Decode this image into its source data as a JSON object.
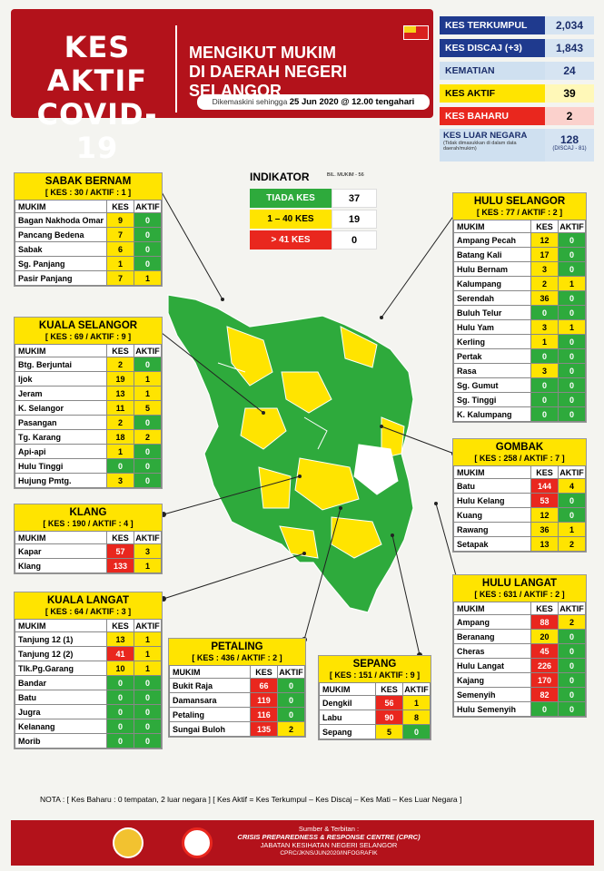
{
  "header": {
    "title": "KES AKTIF COVID-19",
    "subtitle_line1": "MENGIKUT MUKIM",
    "subtitle_line2": "DI DAERAH NEGERI SELANGOR",
    "updated_prefix": "Dikemaskini sehingga",
    "updated_date": "25 Jun 2020 @ 12.00 tengahari"
  },
  "stats": [
    {
      "label": "KES TERKUMPUL",
      "value": "2,034"
    },
    {
      "label": "KES DISCAJ (+3)",
      "value": "1,843"
    },
    {
      "label": "KEMATIAN",
      "value": "24"
    },
    {
      "label": "KES AKTIF",
      "value": "39"
    },
    {
      "label": "KES BAHARU",
      "value": "2"
    }
  ],
  "luar": {
    "label": "KES LUAR NEGARA",
    "note": "(Tidak dimasukkan di dalam data daerah/mukim)",
    "value": "128",
    "sub": "(DISCAJ - 81)"
  },
  "indikator": {
    "title": "INDIKATOR",
    "bil": "BIL. MUKIM - 56",
    "rows": [
      {
        "label": "TIADA KES",
        "value": "37"
      },
      {
        "label": "1 – 40 KES",
        "value": "19"
      },
      {
        "label": "> 41 KES",
        "value": "0"
      }
    ]
  },
  "col": {
    "mukim": "MUKIM",
    "kes": "KES",
    "aktif": "AKTIF"
  },
  "districts": {
    "sabak": {
      "name": "SABAK BERNAM",
      "sub": "[ KES : 30 / AKTIF : 1 ]",
      "rows": [
        [
          "Bagan Nakhoda Omar",
          "9",
          "0"
        ],
        [
          "Pancang Bedena",
          "7",
          "0"
        ],
        [
          "Sabak",
          "6",
          "0"
        ],
        [
          "Sg. Panjang",
          "1",
          "0"
        ],
        [
          "Pasir Panjang",
          "7",
          "1"
        ]
      ]
    },
    "kselangor": {
      "name": "KUALA SELANGOR",
      "sub": "[ KES : 69 / AKTIF : 9 ]",
      "rows": [
        [
          "Btg. Berjuntai",
          "2",
          "0"
        ],
        [
          "Ijok",
          "19",
          "1"
        ],
        [
          "Jeram",
          "13",
          "1"
        ],
        [
          "K. Selangor",
          "11",
          "5"
        ],
        [
          "Pasangan",
          "2",
          "0"
        ],
        [
          "Tg. Karang",
          "18",
          "2"
        ],
        [
          "Api-api",
          "1",
          "0"
        ],
        [
          "Hulu Tinggi",
          "0",
          "0"
        ],
        [
          "Hujung Pmtg.",
          "3",
          "0"
        ]
      ]
    },
    "klang": {
      "name": "KLANG",
      "sub": "[ KES : 190 / AKTIF : 4 ]",
      "rows": [
        [
          "Kapar",
          "57",
          "3"
        ],
        [
          "Klang",
          "133",
          "1"
        ]
      ]
    },
    "klangat": {
      "name": "KUALA LANGAT",
      "sub": "[ KES : 64 / AKTIF : 3 ]",
      "rows": [
        [
          "Tanjung 12 (1)",
          "13",
          "1"
        ],
        [
          "Tanjung 12 (2)",
          "41",
          "1"
        ],
        [
          "Tlk.Pg.Garang",
          "10",
          "1"
        ],
        [
          "Bandar",
          "0",
          "0"
        ],
        [
          "Batu",
          "0",
          "0"
        ],
        [
          "Jugra",
          "0",
          "0"
        ],
        [
          "Kelanang",
          "0",
          "0"
        ],
        [
          "Morib",
          "0",
          "0"
        ]
      ]
    },
    "petaling": {
      "name": "PETALING",
      "sub": "[ KES : 436 / AKTIF : 2 ]",
      "rows": [
        [
          "Bukit Raja",
          "66",
          "0"
        ],
        [
          "Damansara",
          "119",
          "0"
        ],
        [
          "Petaling",
          "116",
          "0"
        ],
        [
          "Sungai Buloh",
          "135",
          "2"
        ]
      ]
    },
    "sepang": {
      "name": "SEPANG",
      "sub": "[ KES : 151 / AKTIF : 9 ]",
      "rows": [
        [
          "Dengkil",
          "56",
          "1"
        ],
        [
          "Labu",
          "90",
          "8"
        ],
        [
          "Sepang",
          "5",
          "0"
        ]
      ]
    },
    "hselangor": {
      "name": "HULU SELANGOR",
      "sub": "[ KES : 77 / AKTIF : 2 ]",
      "rows": [
        [
          "Ampang Pecah",
          "12",
          "0"
        ],
        [
          "Batang Kali",
          "17",
          "0"
        ],
        [
          "Hulu Bernam",
          "3",
          "0"
        ],
        [
          "Kalumpang",
          "2",
          "1"
        ],
        [
          "Serendah",
          "36",
          "0"
        ],
        [
          "Buluh Telur",
          "0",
          "0"
        ],
        [
          "Hulu Yam",
          "3",
          "1"
        ],
        [
          "Kerling",
          "1",
          "0"
        ],
        [
          "Pertak",
          "0",
          "0"
        ],
        [
          "Rasa",
          "3",
          "0"
        ],
        [
          "Sg. Gumut",
          "0",
          "0"
        ],
        [
          "Sg. Tinggi",
          "0",
          "0"
        ],
        [
          "K. Kalumpang",
          "0",
          "0"
        ]
      ]
    },
    "gombak": {
      "name": "GOMBAK",
      "sub": "[ KES : 258 / AKTIF : 7 ]",
      "rows": [
        [
          "Batu",
          "144",
          "4"
        ],
        [
          "Hulu Kelang",
          "53",
          "0"
        ],
        [
          "Kuang",
          "12",
          "0"
        ],
        [
          "Rawang",
          "36",
          "1"
        ],
        [
          "Setapak",
          "13",
          "2"
        ]
      ]
    },
    "hlangat": {
      "name": "HULU LANGAT",
      "sub": "[ KES : 631 / AKTIF : 2 ]",
      "rows": [
        [
          "Ampang",
          "88",
          "2"
        ],
        [
          "Beranang",
          "20",
          "0"
        ],
        [
          "Cheras",
          "45",
          "0"
        ],
        [
          "Hulu Langat",
          "226",
          "0"
        ],
        [
          "Kajang",
          "170",
          "0"
        ],
        [
          "Semenyih",
          "82",
          "0"
        ],
        [
          "Hulu Semenyih",
          "0",
          "0"
        ]
      ]
    }
  },
  "nota": "NOTA :  [ Kes Baharu : 0 tempatan, 2 luar negara ] [ Kes Aktif = Kes Terkumpul – Kes Discaj – Kes Mati – Kes Luar Negara ]",
  "footer": {
    "l1": "Sumber & Terbitan :",
    "l2": "CRISIS PREPAREDNESS & RESPONSE CENTRE (CPRC)",
    "l3": "JABATAN KESIHATAN NEGERI SELANGOR",
    "l4": "CPRC/JKNS/JUN2020/INFOGRAFIK"
  }
}
